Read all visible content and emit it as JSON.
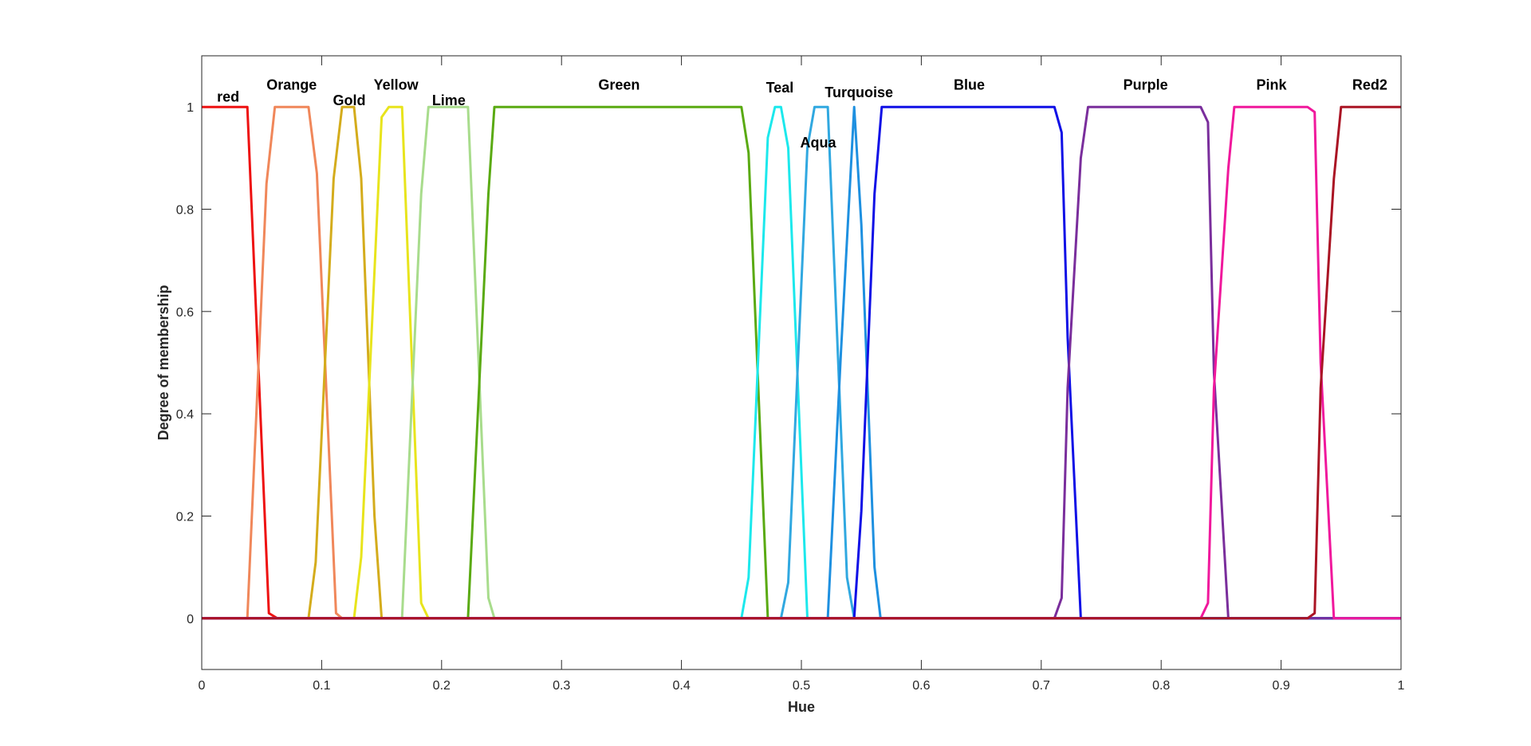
{
  "chart_data": {
    "type": "line",
    "title": "",
    "xlabel": "Hue",
    "ylabel": "Degree of membership",
    "xlim": [
      0,
      1
    ],
    "ylim": [
      -0.1,
      1.1
    ],
    "x_ticks": [
      "0",
      "0.1",
      "0.2",
      "0.3",
      "0.4",
      "0.5",
      "0.6",
      "0.7",
      "0.8",
      "0.9",
      "1"
    ],
    "y_ticks": [
      "0",
      "0.2",
      "0.4",
      "0.6",
      "0.8",
      "1"
    ],
    "grid": false,
    "series": [
      {
        "name": "red",
        "color": "#ee1111",
        "label_pos": [
          0.022,
          1.02
        ],
        "x": [
          0,
          0.038,
          0.056,
          0.063,
          1
        ],
        "y": [
          1,
          1,
          0.01,
          0,
          0
        ]
      },
      {
        "name": "Orange",
        "color": "#f0875a",
        "label_pos": [
          0.075,
          1.043
        ],
        "x": [
          0,
          0.038,
          0.054,
          0.061,
          0.089,
          0.096,
          0.112,
          0.117,
          1
        ],
        "y": [
          0,
          0,
          0.85,
          1,
          1,
          0.87,
          0.01,
          0,
          0
        ]
      },
      {
        "name": "Gold",
        "color": "#d4ac1c",
        "label_pos": [
          0.123,
          1.013
        ],
        "x": [
          0,
          0.089,
          0.095,
          0.11,
          0.117,
          0.127,
          0.133,
          0.144,
          0.15,
          1
        ],
        "y": [
          0,
          0,
          0.11,
          0.86,
          1,
          1,
          0.86,
          0.2,
          0,
          0
        ]
      },
      {
        "name": "Yellow",
        "color": "#e8e41c",
        "label_pos": [
          0.162,
          1.043
        ],
        "x": [
          0,
          0.127,
          0.133,
          0.15,
          0.156,
          0.167,
          0.183,
          0.189,
          1
        ],
        "y": [
          0,
          0,
          0.12,
          0.98,
          1,
          1,
          0.03,
          0,
          0
        ]
      },
      {
        "name": "Lime",
        "color": "#a8dc8c",
        "label_pos": [
          0.206,
          1.013
        ],
        "x": [
          0,
          0.167,
          0.183,
          0.189,
          0.222,
          0.239,
          0.244,
          1
        ],
        "y": [
          0,
          0,
          0.83,
          1,
          1,
          0.04,
          0,
          0
        ]
      },
      {
        "name": "Green",
        "color": "#5aaa12",
        "label_pos": [
          0.348,
          1.043
        ],
        "x": [
          0,
          0.222,
          0.239,
          0.244,
          0.45,
          0.456,
          0.472,
          1
        ],
        "y": [
          0,
          0,
          0.83,
          1,
          1,
          0.91,
          0,
          0
        ]
      },
      {
        "name": "Teal",
        "color": "#1ce8ec",
        "label_pos": [
          0.482,
          1.038
        ],
        "x": [
          0,
          0.45,
          0.456,
          0.472,
          0.478,
          0.483,
          0.489,
          0.505,
          1
        ],
        "y": [
          0,
          0,
          0.08,
          0.94,
          1,
          1,
          0.92,
          0,
          0
        ]
      },
      {
        "name": "Aqua",
        "color": "#30a8e0",
        "label_pos": [
          0.514,
          0.93
        ],
        "x": [
          0,
          0.483,
          0.489,
          0.505,
          0.511,
          0.522,
          0.538,
          0.544,
          1
        ],
        "y": [
          0,
          0,
          0.07,
          0.92,
          1,
          1,
          0.08,
          0,
          0
        ]
      },
      {
        "name": "Turquoise",
        "color": "#1e90e0",
        "label_pos": [
          0.548,
          1.028
        ],
        "x": [
          0,
          0.522,
          0.533,
          0.544,
          0.55,
          0.561,
          0.566,
          1
        ],
        "y": [
          0,
          0,
          0.52,
          1,
          0.77,
          0.1,
          0,
          0
        ]
      },
      {
        "name": "Blue",
        "color": "#1010e6",
        "label_pos": [
          0.64,
          1.043
        ],
        "x": [
          0,
          0.544,
          0.55,
          0.561,
          0.567,
          0.711,
          0.717,
          0.722,
          0.733,
          1
        ],
        "y": [
          0,
          0,
          0.21,
          0.83,
          1,
          1,
          0.95,
          0.55,
          0,
          0
        ]
      },
      {
        "name": "Purple",
        "color": "#7a2e9c",
        "label_pos": [
          0.787,
          1.043
        ],
        "x": [
          0,
          0.711,
          0.717,
          0.722,
          0.733,
          0.739,
          0.833,
          0.839,
          0.844,
          0.856,
          1
        ],
        "y": [
          0,
          0,
          0.04,
          0.45,
          0.9,
          1,
          1,
          0.97,
          0.48,
          0,
          0
        ]
      },
      {
        "name": "Pink",
        "color": "#f0189c",
        "label_pos": [
          0.892,
          1.043
        ],
        "x": [
          0,
          0.833,
          0.839,
          0.844,
          0.856,
          0.861,
          0.922,
          0.928,
          0.933,
          0.944,
          1
        ],
        "y": [
          0,
          0,
          0.03,
          0.45,
          0.88,
          1,
          1,
          0.99,
          0.5,
          0,
          0
        ]
      },
      {
        "name": "Red2",
        "color": "#aa1424",
        "label_pos": [
          0.974,
          1.043
        ],
        "x": [
          0,
          0.922,
          0.928,
          0.933,
          0.944,
          0.95,
          1
        ],
        "y": [
          0,
          0,
          0.01,
          0.45,
          0.86,
          1,
          1
        ]
      }
    ]
  }
}
